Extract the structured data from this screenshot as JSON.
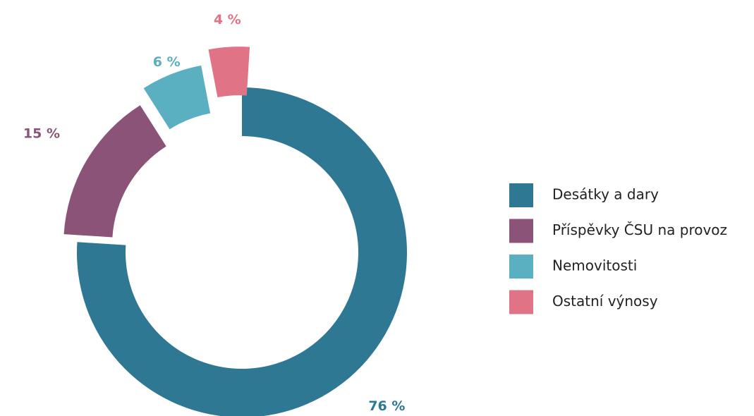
{
  "chart_data": {
    "type": "pie",
    "categories": [
      "Desátky a dary",
      "Příspěvky ČSU na provoz",
      "Nemovitosti",
      "Ostatní výnosy"
    ],
    "values": [
      76,
      15,
      6,
      4
    ],
    "value_labels": [
      "76 %",
      "15 %",
      "6 %",
      "4 %"
    ],
    "colors": [
      "#2e7894",
      "#8b5378",
      "#5aafc0",
      "#e07385"
    ],
    "legend": "right"
  }
}
